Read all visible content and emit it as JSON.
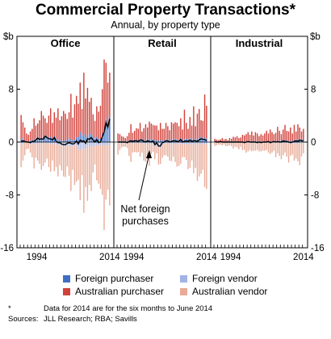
{
  "chart_data": {
    "type": "bar",
    "title": "Commercial Property Transactions*",
    "subtitle": "Annual, by property type",
    "unit_left": "$b",
    "unit_right": "$b",
    "ylim": [
      -16,
      16
    ],
    "yticks": [
      "-16",
      "-8",
      "0",
      "8"
    ],
    "xtick_labels": [
      "1994",
      "2014"
    ],
    "x_periods": "half-years 1990 H1 to 2014 H1",
    "colors": {
      "foreign_purchaser": "#3f6fc4",
      "australian_purchaser": "#d0413a",
      "foreign_vendor": "#a3b3e3",
      "australian_vendor": "#e8ab98",
      "net_line": "#000000"
    },
    "annotation": "Net foreign purchases",
    "legend": [
      {
        "key": "foreign_purchaser",
        "label": "Foreign purchaser"
      },
      {
        "key": "foreign_vendor",
        "label": "Foreign vendor"
      },
      {
        "key": "australian_purchaser",
        "label": "Australian purchaser"
      },
      {
        "key": "australian_vendor",
        "label": "Australian vendor"
      }
    ],
    "panels": [
      {
        "name": "Office",
        "foreign_purchaser": [
          0.3,
          0.6,
          0.2,
          0.1,
          0.1,
          0.2,
          0.3,
          0.4,
          0.6,
          0.8,
          0.5,
          0.7,
          0.6,
          1.0,
          0.9,
          0.7,
          0.8,
          0.6,
          0.9,
          0.5,
          0.4,
          0.3,
          0.2,
          0.2,
          0.3,
          0.3,
          0.5,
          0.5,
          0.3,
          0.3,
          0.7,
          0.8,
          1.5,
          1.0,
          1.2,
          0.8,
          1.0,
          1.2,
          1.3,
          1.0,
          0.6,
          0.8,
          0.5,
          0.5,
          1.2,
          2.0,
          3.5,
          2.5,
          4.0
        ],
        "australian_purchaser": [
          3.8,
          2.4,
          2.0,
          1.2,
          1.0,
          1.4,
          1.7,
          3.2,
          1.9,
          2.0,
          2.8,
          4.0,
          3.4,
          2.6,
          2.0,
          3.3,
          4.3,
          2.3,
          3.6,
          3.2,
          4.7,
          3.0,
          3.7,
          4.5,
          4.0,
          3.2,
          4.0,
          6.8,
          3.4,
          5.4,
          6.3,
          5.0,
          7.5,
          4.0,
          9.3,
          5.8,
          7.2,
          4.9,
          5.4,
          3.2,
          2.6,
          4.6,
          4.1,
          5.0,
          6.8,
          10.5,
          8.5,
          6.5,
          6.5
        ],
        "foreign_vendor": [
          0.2,
          0.4,
          0.1,
          0.1,
          0.1,
          0.3,
          0.2,
          0.3,
          0.3,
          0.2,
          0.1,
          0.2,
          0.2,
          0.1,
          0.2,
          0.2,
          0.3,
          0.3,
          0.2,
          0.4,
          0.5,
          0.4,
          0.5,
          0.6,
          0.7,
          0.5,
          0.6,
          0.7,
          0.6,
          0.5,
          0.5,
          1.1,
          1.2,
          0.9,
          1.0,
          1.0,
          0.5,
          0.8,
          0.6,
          0.7,
          0.6,
          0.4,
          0.6,
          0.5,
          0.4,
          0.5,
          0.5,
          0.3,
          0.5
        ],
        "australian_vendor": [
          3.6,
          2.4,
          1.9,
          1.0,
          0.9,
          1.3,
          2.1,
          3.7,
          2.1,
          2.6,
          3.2,
          4.0,
          3.4,
          3.0,
          2.3,
          3.6,
          4.2,
          2.5,
          4.2,
          3.4,
          4.7,
          3.1,
          3.8,
          4.6,
          4.6,
          3.2,
          4.5,
          6.7,
          3.6,
          6.0,
          5.5,
          4.6,
          7.6,
          4.1,
          9.7,
          5.8,
          8.4,
          5.7,
          6.8,
          3.9,
          2.8,
          5.4,
          5.7,
          6.6,
          7.6,
          12.8,
          8.2,
          6.9,
          9.1
        ],
        "net_foreign": [
          0.1,
          0.2,
          0.1,
          0.0,
          0.0,
          -0.1,
          0.1,
          0.1,
          0.3,
          0.6,
          0.4,
          0.5,
          0.4,
          0.9,
          0.7,
          0.5,
          0.5,
          0.3,
          0.7,
          0.1,
          -0.1,
          -0.1,
          -0.3,
          -0.4,
          -0.4,
          -0.2,
          -0.1,
          -0.2,
          -0.3,
          -0.2,
          0.2,
          -0.3,
          0.3,
          0.1,
          0.2,
          -0.2,
          0.5,
          0.4,
          0.7,
          0.3,
          0.0,
          0.4,
          -0.1,
          0.0,
          0.8,
          1.5,
          3.0,
          2.2,
          3.5
        ]
      },
      {
        "name": "Retail",
        "foreign_purchaser": [
          0.1,
          0.2,
          0.1,
          0.1,
          0.1,
          0.1,
          0.2,
          0.3,
          0.2,
          0.4,
          0.3,
          0.3,
          0.4,
          0.5,
          0.3,
          0.3,
          0.5,
          0.3,
          0.4,
          0.5,
          0.3,
          0.3,
          0.2,
          0.3,
          0.2,
          0.3,
          0.4,
          0.4,
          0.3,
          0.3,
          0.4,
          0.5,
          0.4,
          0.3,
          0.6,
          0.3,
          0.4,
          0.5,
          0.4,
          0.6,
          0.4,
          0.5,
          0.4,
          0.5,
          0.6,
          0.8,
          0.6,
          0.7,
          0.5
        ],
        "australian_purchaser": [
          1.2,
          1.0,
          0.8,
          0.7,
          0.5,
          0.8,
          1.2,
          2.4,
          1.2,
          1.3,
          1.8,
          1.7,
          2.5,
          1.1,
          1.8,
          2.4,
          1.7,
          2.8,
          2.4,
          2.1,
          2.2,
          2.2,
          1.6,
          2.6,
          1.8,
          1.7,
          2.5,
          2.0,
          1.5,
          2.7,
          2.4,
          2.5,
          2.5,
          2.1,
          3.0,
          1.6,
          4.5,
          2.4,
          1.6,
          3.2,
          2.1,
          4.9,
          2.0,
          3.8,
          4.4,
          2.5,
          2.6,
          6.5,
          5.0
        ],
        "foreign_vendor": [
          0.1,
          0.2,
          0.1,
          0.1,
          0.1,
          0.2,
          0.1,
          0.1,
          0.1,
          0.2,
          0.1,
          0.2,
          0.1,
          0.2,
          0.2,
          0.3,
          0.3,
          0.2,
          0.4,
          0.3,
          0.7,
          0.4,
          0.8,
          0.9,
          0.3,
          0.3,
          0.2,
          0.2,
          0.3,
          0.2,
          0.2,
          0.3,
          0.3,
          0.2,
          0.2,
          0.3,
          0.3,
          0.3,
          0.3,
          0.3,
          0.3,
          0.3,
          0.2,
          0.4,
          0.3,
          0.3,
          0.2,
          0.3,
          0.3
        ],
        "australian_vendor": [
          1.8,
          1.0,
          0.7,
          0.6,
          0.6,
          0.7,
          2.0,
          2.9,
          1.5,
          1.3,
          1.5,
          1.3,
          2.1,
          1.4,
          2.6,
          2.7,
          2.3,
          3.4,
          1.4,
          1.2,
          1.9,
          1.3,
          2.6,
          2.4,
          2.1,
          1.7,
          1.8,
          2.0,
          2.5,
          2.7,
          2.0,
          2.7,
          3.4,
          3.4,
          3.1,
          2.0,
          2.0,
          2.4,
          3.8,
          3.6,
          2.5,
          4.4,
          3.7,
          5.5,
          4.9,
          4.5,
          4.0,
          6.5,
          6.8
        ],
        "net_foreign": [
          0.0,
          0.0,
          0.0,
          0.0,
          0.0,
          -0.1,
          0.1,
          0.2,
          0.1,
          0.2,
          0.2,
          0.1,
          0.3,
          0.3,
          0.1,
          0.0,
          0.2,
          0.1,
          0.0,
          0.2,
          -0.4,
          -0.1,
          -0.6,
          -0.6,
          -0.1,
          0.0,
          0.2,
          0.2,
          0.0,
          0.1,
          0.2,
          0.2,
          0.1,
          0.1,
          0.4,
          0.0,
          0.1,
          0.2,
          0.1,
          0.3,
          0.1,
          0.2,
          0.2,
          0.1,
          0.3,
          0.5,
          0.4,
          0.4,
          0.2
        ]
      },
      {
        "name": "Industrial",
        "foreign_purchaser": [
          0.1,
          0.1,
          0.1,
          0.1,
          0.1,
          0.1,
          0.1,
          0.1,
          0.1,
          0.1,
          0.1,
          0.1,
          0.1,
          0.1,
          0.1,
          0.1,
          0.1,
          0.1,
          0.2,
          0.1,
          0.1,
          0.1,
          0.2,
          0.1,
          0.1,
          0.1,
          0.1,
          0.1,
          0.1,
          0.2,
          0.1,
          0.1,
          0.2,
          0.1,
          0.2,
          0.2,
          0.2,
          0.3,
          0.2,
          0.3,
          0.2,
          0.1,
          0.2,
          0.3,
          0.4,
          0.3,
          0.5,
          0.4,
          0.3
        ],
        "australian_purchaser": [
          0.4,
          0.3,
          0.2,
          0.3,
          0.5,
          0.3,
          0.4,
          0.2,
          0.5,
          0.4,
          0.7,
          0.6,
          0.8,
          0.5,
          0.6,
          1.0,
          0.9,
          1.1,
          1.3,
          1.0,
          1.5,
          0.9,
          1.3,
          1.2,
          0.8,
          1.1,
          0.9,
          1.2,
          1.6,
          1.1,
          1.8,
          1.4,
          1.0,
          1.3,
          2.1,
          1.5,
          1.0,
          1.6,
          2.4,
          1.4,
          1.4,
          2.1,
          1.1,
          2.3,
          1.2,
          2.4,
          1.7,
          1.2,
          1.7
        ],
        "foreign_vendor": [
          0.0,
          0.1,
          0.1,
          0.0,
          0.1,
          0.1,
          0.1,
          0.1,
          0.1,
          0.1,
          0.1,
          0.1,
          0.1,
          0.1,
          0.1,
          0.1,
          0.2,
          0.1,
          0.1,
          0.1,
          0.1,
          0.1,
          0.2,
          0.2,
          0.1,
          0.2,
          0.1,
          0.1,
          0.1,
          0.1,
          0.2,
          0.1,
          0.1,
          0.1,
          0.1,
          0.2,
          0.2,
          0.1,
          0.1,
          0.2,
          0.2,
          0.2,
          0.2,
          0.2,
          0.2,
          0.2,
          0.2,
          0.2,
          0.1
        ],
        "australian_vendor": [
          0.6,
          0.4,
          0.3,
          0.4,
          0.4,
          0.3,
          0.5,
          0.5,
          0.4,
          0.5,
          0.9,
          0.6,
          0.7,
          1.0,
          0.6,
          1.1,
          1.0,
          1.5,
          1.3,
          1.1,
          1.3,
          1.2,
          1.1,
          1.0,
          1.3,
          1.2,
          1.2,
          1.2,
          1.1,
          1.5,
          1.6,
          1.5,
          1.2,
          2.2,
          1.6,
          1.9,
          2.4,
          1.9,
          1.5,
          2.0,
          2.9,
          1.9,
          1.7,
          2.6,
          2.3,
          2.7,
          3.3,
          2.0,
          1.6
        ],
        "net_foreign": [
          0.1,
          0.0,
          0.0,
          0.1,
          0.0,
          0.0,
          0.0,
          0.0,
          0.0,
          0.0,
          0.0,
          0.0,
          0.0,
          0.0,
          0.0,
          0.0,
          -0.1,
          0.0,
          0.1,
          0.0,
          0.0,
          0.0,
          0.0,
          -0.1,
          0.0,
          -0.1,
          0.0,
          0.0,
          0.0,
          0.1,
          -0.1,
          0.0,
          0.1,
          0.0,
          0.1,
          0.0,
          0.0,
          0.2,
          0.1,
          0.1,
          0.0,
          -0.1,
          0.0,
          0.1,
          0.2,
          0.1,
          0.3,
          0.2,
          0.2
        ]
      }
    ]
  },
  "notes": [
    {
      "key": "*",
      "text": "Data for 2014 are for the six months to June 2014"
    },
    {
      "key": "Sources:",
      "text": "JLL Research; RBA; Savills"
    }
  ]
}
